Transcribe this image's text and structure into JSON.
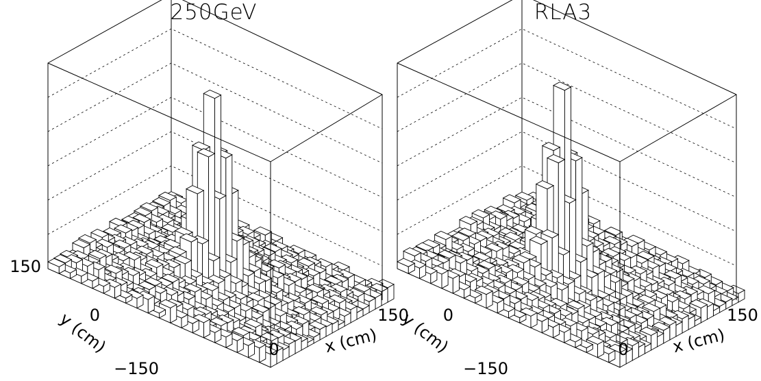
{
  "chart_data": [
    {
      "type": "heatmap",
      "style": "lego-3d-histogram",
      "title": "250GeV",
      "xlabel": "x (cm)",
      "ylabel": "y (cm)",
      "x_ticks": [
        "0",
        "150"
      ],
      "y_ticks": [
        "150",
        "0",
        "-150"
      ],
      "x_range": [
        -150,
        150
      ],
      "y_range": [
        -150,
        150
      ],
      "grid": true,
      "bins": 20,
      "peak": {
        "x": 0,
        "y": 0,
        "relative_height": 1.0
      },
      "profile": "sharp central peak over low flat background"
    },
    {
      "type": "heatmap",
      "style": "lego-3d-histogram",
      "title": "RLA3",
      "xlabel": "x (cm)",
      "ylabel": "y (cm)",
      "x_ticks": [
        "0",
        "150"
      ],
      "y_ticks": [
        "0",
        "-150"
      ],
      "x_range": [
        -150,
        150
      ],
      "y_range": [
        -150,
        150
      ],
      "grid": true,
      "bins": 20,
      "peak": {
        "x": 0,
        "y": 0,
        "relative_height": 1.0
      },
      "profile": "sharp central peak over low flat background"
    }
  ]
}
